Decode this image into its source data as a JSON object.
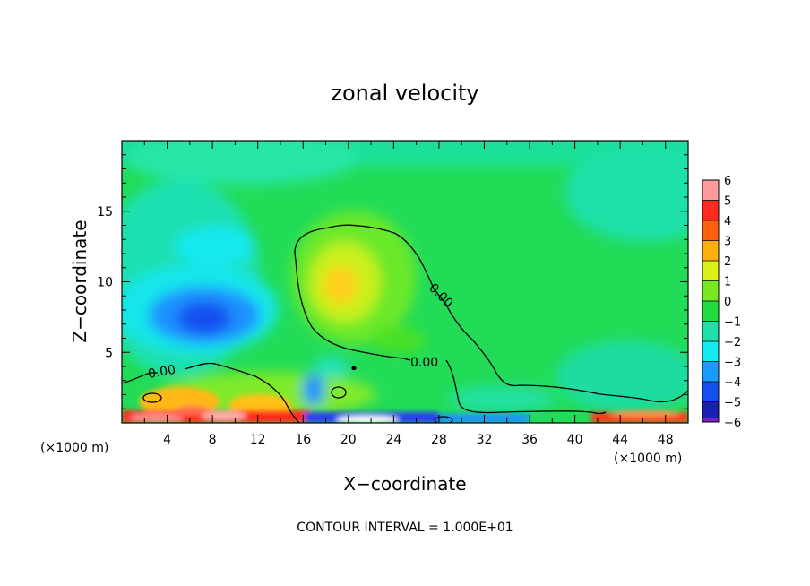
{
  "chart_data": {
    "type": "heatmap",
    "title": "zonal velocity",
    "xlabel": "X−coordinate",
    "ylabel": "Z−coordinate",
    "x_unit_left": "(×1000 m)",
    "x_unit_right": "(×1000 m)",
    "xlim": [
      0,
      50
    ],
    "ylim": [
      0,
      20
    ],
    "x_ticks": [
      4,
      8,
      12,
      16,
      20,
      24,
      28,
      32,
      36,
      40,
      44,
      48
    ],
    "x_tick_labels": [
      "4",
      "8",
      "12",
      "16",
      "20",
      "24",
      "28",
      "32",
      "36",
      "40",
      "44",
      "48"
    ],
    "y_ticks": [
      5,
      10,
      15
    ],
    "y_tick_labels": [
      "5",
      "10",
      "15"
    ],
    "footer": "CONTOUR INTERVAL = 1.000E+01",
    "contour_labels": [
      "0.00",
      "0.00",
      "0.00"
    ],
    "colorbar": {
      "range": [
        -6,
        6
      ],
      "tick_values": [
        6,
        5,
        4,
        3,
        2,
        1,
        0,
        -1,
        -2,
        -3,
        -4,
        -5,
        -6
      ],
      "tick_labels": [
        "6",
        "5",
        "4",
        "3",
        "2",
        "1",
        "0",
        "−1",
        "−2",
        "−3",
        "−4",
        "−5",
        "−6"
      ]
    },
    "features": [
      {
        "kind": "positive_max",
        "x": 20.5,
        "z": 9.8,
        "value": 2.6
      },
      {
        "kind": "negative_min",
        "x": 8.5,
        "z": 7.5,
        "value": -4.4
      },
      {
        "kind": "negative_core",
        "x": 9.0,
        "z": 13.0,
        "value": -1.6
      },
      {
        "kind": "surface_positive",
        "x": 5.5,
        "z": 0.6,
        "value": 5.0
      },
      {
        "kind": "surface_negative",
        "x": 22.0,
        "z": 0.4,
        "value": -4.0
      },
      {
        "kind": "surface_positive",
        "x": 46.0,
        "z": 0.3,
        "value": 4.0
      }
    ]
  }
}
